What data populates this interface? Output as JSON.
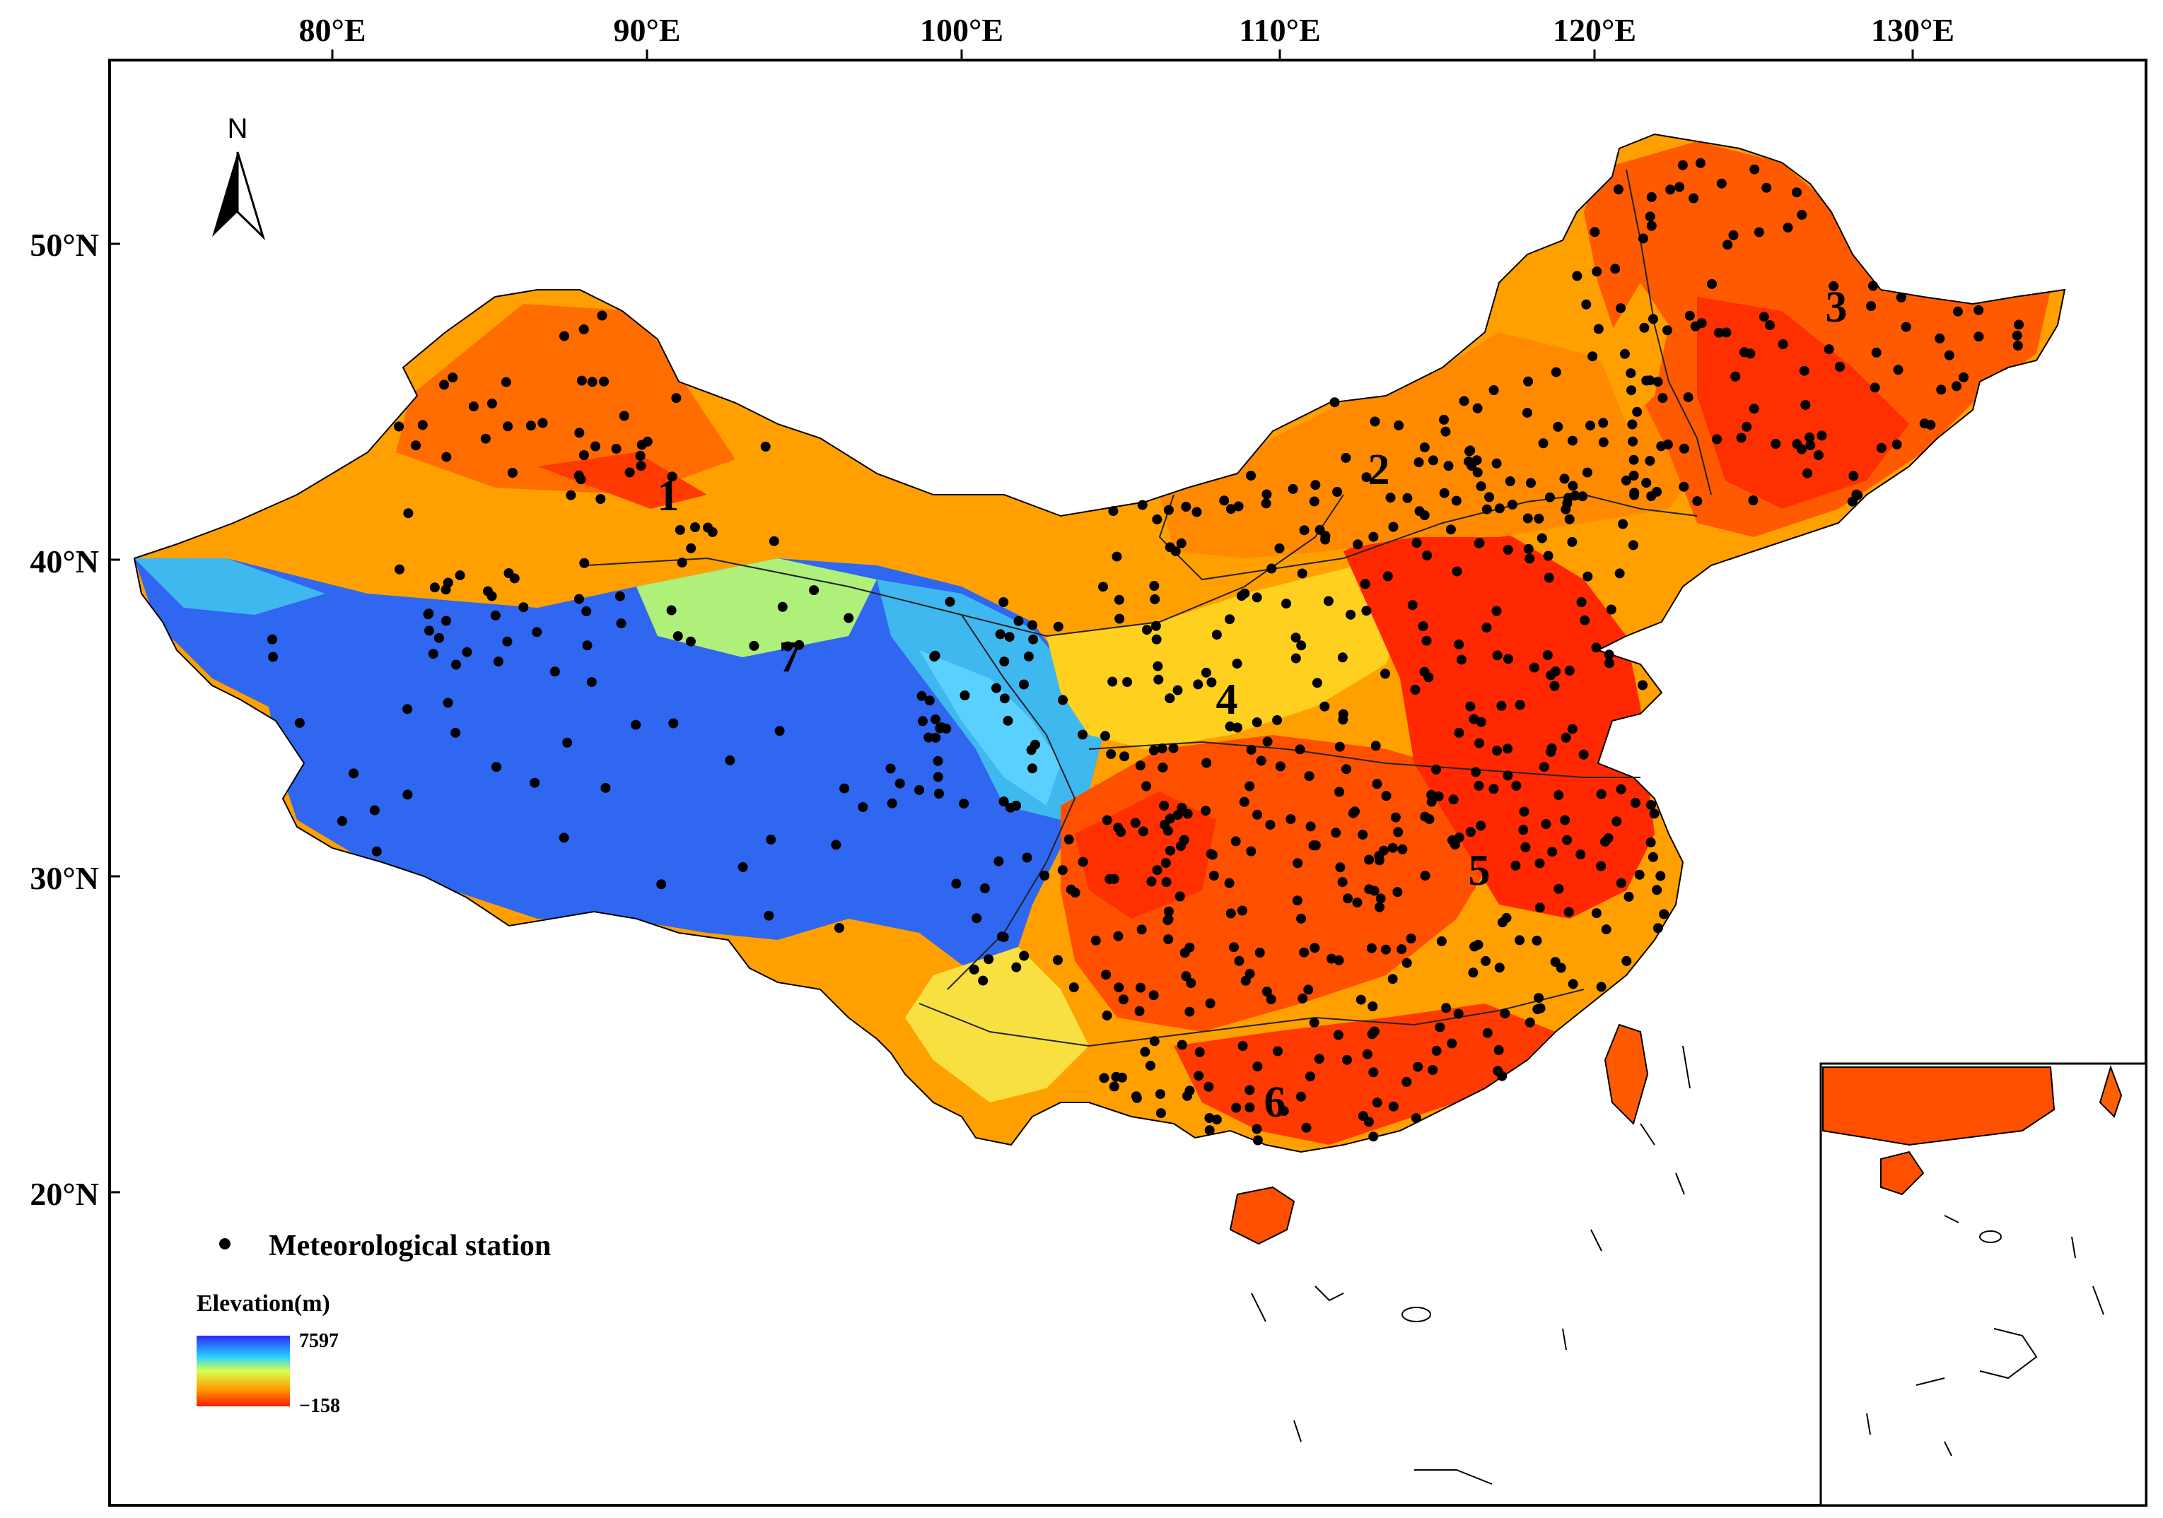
{
  "lon_ticks": [
    "80°E",
    "90°E",
    "100°E",
    "110°E",
    "120°E",
    "130°E"
  ],
  "lat_ticks": [
    "50°N",
    "40°N",
    "30°N",
    "20°N"
  ],
  "north_arrow": {
    "letter": "N",
    "icon": "north-arrow-icon"
  },
  "regions": [
    "1",
    "2",
    "3",
    "4",
    "5",
    "6",
    "7"
  ],
  "legend": {
    "station_label": "Meteorological station",
    "elevation_title": "Elevation(m)",
    "max_value": "7597",
    "min_value": "−158",
    "color_high": "#1a3cff",
    "color_low": "#ff2a00"
  },
  "colors": {
    "plateau_blue": "#2f67f0",
    "plateau_cyan": "#3fb8f0",
    "desert_orange": "#ffa500",
    "plain_red": "#ff3a00",
    "station": "#000000"
  }
}
